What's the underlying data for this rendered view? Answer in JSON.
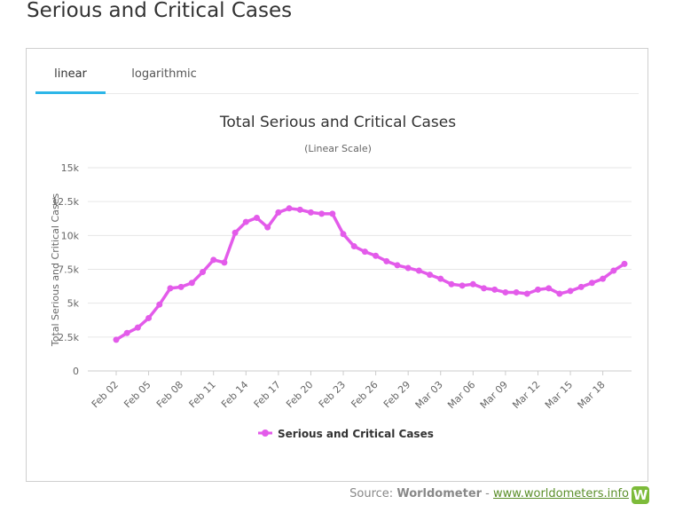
{
  "page": {
    "title": "Serious and Critical Cases"
  },
  "tabs": [
    {
      "label": "linear",
      "active": true
    },
    {
      "label": "logarithmic",
      "active": false
    }
  ],
  "colors": {
    "series": "#e35bea",
    "tab_active": "#2db6e8",
    "grid": "#e6e6e6",
    "logo": "#7dbb3a",
    "link": "#5b8f2a"
  },
  "source": {
    "prefix": "Source: ",
    "name": "Worldometer",
    "separator": " - ",
    "link": "www.worldometers.info",
    "logo_text": "W"
  },
  "chart_data": {
    "type": "line",
    "title": "Total Serious and Critical Cases",
    "subtitle": "(Linear Scale)",
    "ylabel": "Total Serious and Critical Cases",
    "xlabel": "",
    "ylim": [
      0,
      15000
    ],
    "yticks": [
      0,
      2500,
      5000,
      7500,
      10000,
      12500,
      15000
    ],
    "ytick_labels": [
      "0",
      "2.5k",
      "5k",
      "7.5k",
      "10k",
      "12.5k",
      "15k"
    ],
    "xtick_labels": [
      "Feb 02",
      "Feb 05",
      "Feb 08",
      "Feb 11",
      "Feb 14",
      "Feb 17",
      "Feb 20",
      "Feb 23",
      "Feb 26",
      "Feb 29",
      "Mar 03",
      "Mar 06",
      "Mar 09",
      "Mar 12",
      "Mar 15",
      "Mar 18"
    ],
    "x": [
      "Feb 02",
      "Feb 03",
      "Feb 04",
      "Feb 05",
      "Feb 06",
      "Feb 07",
      "Feb 08",
      "Feb 09",
      "Feb 10",
      "Feb 11",
      "Feb 12",
      "Feb 13",
      "Feb 14",
      "Feb 15",
      "Feb 16",
      "Feb 17",
      "Feb 18",
      "Feb 19",
      "Feb 20",
      "Feb 21",
      "Feb 22",
      "Feb 23",
      "Feb 24",
      "Feb 25",
      "Feb 26",
      "Feb 27",
      "Feb 28",
      "Feb 29",
      "Mar 01",
      "Mar 02",
      "Mar 03",
      "Mar 04",
      "Mar 05",
      "Mar 06",
      "Mar 07",
      "Mar 08",
      "Mar 09",
      "Mar 10",
      "Mar 11",
      "Mar 12",
      "Mar 13",
      "Mar 14",
      "Mar 15",
      "Mar 16",
      "Mar 17",
      "Mar 18",
      "Mar 19",
      "Mar 20"
    ],
    "series": [
      {
        "name": "Serious and Critical Cases",
        "values": [
          2300,
          2800,
          3200,
          3900,
          4900,
          6100,
          6200,
          6500,
          7300,
          8200,
          8000,
          10200,
          11000,
          11300,
          10600,
          11700,
          12000,
          11900,
          11700,
          11600,
          11600,
          10100,
          9200,
          8800,
          8500,
          8100,
          7800,
          7600,
          7400,
          7100,
          6800,
          6400,
          6300,
          6400,
          6100,
          6000,
          5800,
          5800,
          5700,
          6000,
          6100,
          5700,
          5900,
          6200,
          6500,
          6800,
          7400,
          7900
        ]
      }
    ],
    "legend": {
      "position": "bottom-center"
    },
    "grid": true
  }
}
